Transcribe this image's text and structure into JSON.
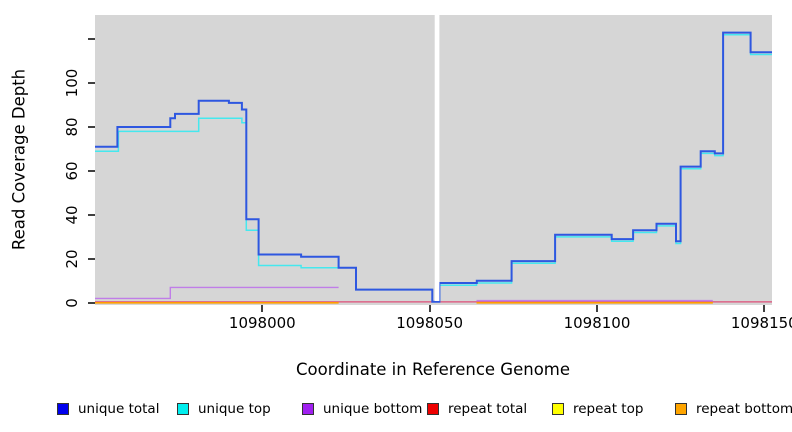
{
  "figure": {
    "xlabel": "Coordinate in Reference Genome",
    "ylabel": "Read Coverage Depth"
  },
  "legend": {
    "items": [
      {
        "label": "unique total",
        "color": "#0000ee"
      },
      {
        "label": "unique top",
        "color": "#00eeee"
      },
      {
        "label": "unique bottom",
        "color": "#a020f0"
      },
      {
        "label": "repeat total",
        "color": "#ee0000"
      },
      {
        "label": "repeat top",
        "color": "#ffff00"
      },
      {
        "label": "repeat bottom",
        "color": "#ffa500"
      }
    ]
  },
  "chart_data": {
    "type": "line",
    "subtype": "step-coverage",
    "title": "",
    "xlabel": "Coordinate in Reference Genome",
    "ylabel": "Read Coverage Depth",
    "panel_bg": "#d6d6d6",
    "xlim": [
      1097950,
      1098152.3
    ],
    "ylim": [
      -1,
      131
    ],
    "xticks": [
      1098000,
      1098050,
      1098100,
      1098150
    ],
    "yticks": [
      0,
      20,
      40,
      60,
      80,
      100
    ],
    "yticks_unlabeled": [
      120
    ],
    "grid": false,
    "legend_position": "bottom",
    "gap": {
      "x0": 1098051.5,
      "x1": 1098052.9
    },
    "series": [
      {
        "name": "repeat total",
        "line_color": "#dd4f78",
        "width": 1.2,
        "segments": [
          {
            "steps": [
              [
                1097950,
                0.4
              ]
            ],
            "xend": 1098152.3
          }
        ]
      },
      {
        "name": "repeat top",
        "line_color": "#f2e200",
        "width": 1,
        "segments": [
          {
            "steps": [
              [
                1097950,
                0
              ]
            ],
            "xend": 1098022.8
          },
          {
            "steps": [
              [
                1098064,
                0
              ]
            ],
            "xend": 1098134.6
          }
        ]
      },
      {
        "name": "repeat bottom",
        "line_color": "#ff9d00",
        "width": 1.6,
        "segments": [
          {
            "steps": [
              [
                1097950,
                0
              ]
            ],
            "xend": 1098022.8
          },
          {
            "steps": [
              [
                1098064,
                0
              ]
            ],
            "xend": 1098134.6
          }
        ]
      },
      {
        "name": "unique bottom",
        "line_color": "#c07de8",
        "width": 1.4,
        "segments": [
          {
            "steps": [
              [
                1097950,
                2
              ],
              [
                1097972.5,
                7
              ]
            ],
            "xend": 1098022.8
          },
          {
            "steps": [
              [
                1098064,
                1
              ]
            ],
            "xend": 1098134.6
          }
        ]
      },
      {
        "name": "unique top",
        "line_color": "#45e8ee",
        "width": 1.5,
        "segments": [
          {
            "steps": [
              [
                1097950,
                69
              ],
              [
                1097957,
                78
              ],
              [
                1097981,
                84
              ],
              [
                1097993.9,
                82
              ],
              [
                1097995.2,
                33
              ],
              [
                1097998.9,
                17
              ],
              [
                1098011.6,
                16
              ],
              [
                1098022.8,
                16
              ],
              [
                1098028,
                6
              ],
              [
                1098050.8,
                0.5
              ],
              [
                1098052.9,
                8
              ],
              [
                1098064,
                9
              ],
              [
                1098074.5,
                18
              ],
              [
                1098087.5,
                30
              ],
              [
                1098104.4,
                28
              ],
              [
                1098110.8,
                32
              ],
              [
                1098117.8,
                35
              ],
              [
                1098123.6,
                27
              ],
              [
                1098125,
                61
              ],
              [
                1098131,
                68
              ],
              [
                1098135.2,
                67
              ],
              [
                1098137.7,
                122
              ],
              [
                1098145.9,
                113
              ]
            ],
            "xend": 1098152.3
          }
        ]
      },
      {
        "name": "unique total",
        "line_color": "#2e57e0",
        "width": 2,
        "segments": [
          {
            "steps": [
              [
                1097950,
                71
              ],
              [
                1097956.7,
                80
              ],
              [
                1097972.5,
                84
              ],
              [
                1097973.9,
                86
              ],
              [
                1097981,
                92
              ],
              [
                1097990,
                91
              ],
              [
                1097993.9,
                88
              ],
              [
                1097995.2,
                38
              ],
              [
                1097998.9,
                22
              ],
              [
                1098011.6,
                21
              ],
              [
                1098022.8,
                16
              ],
              [
                1098028,
                6
              ],
              [
                1098050.8,
                0.5
              ],
              [
                1098052.9,
                9
              ],
              [
                1098064.1,
                10
              ],
              [
                1098074.5,
                19
              ],
              [
                1098087.5,
                31
              ],
              [
                1098104.4,
                29
              ],
              [
                1098110.8,
                33
              ],
              [
                1098117.8,
                36
              ],
              [
                1098123.6,
                28
              ],
              [
                1098125,
                62
              ],
              [
                1098131,
                69
              ],
              [
                1098135.2,
                68
              ],
              [
                1098137.7,
                123
              ],
              [
                1098145.9,
                114
              ]
            ],
            "xend": 1098152.3
          }
        ]
      }
    ]
  }
}
